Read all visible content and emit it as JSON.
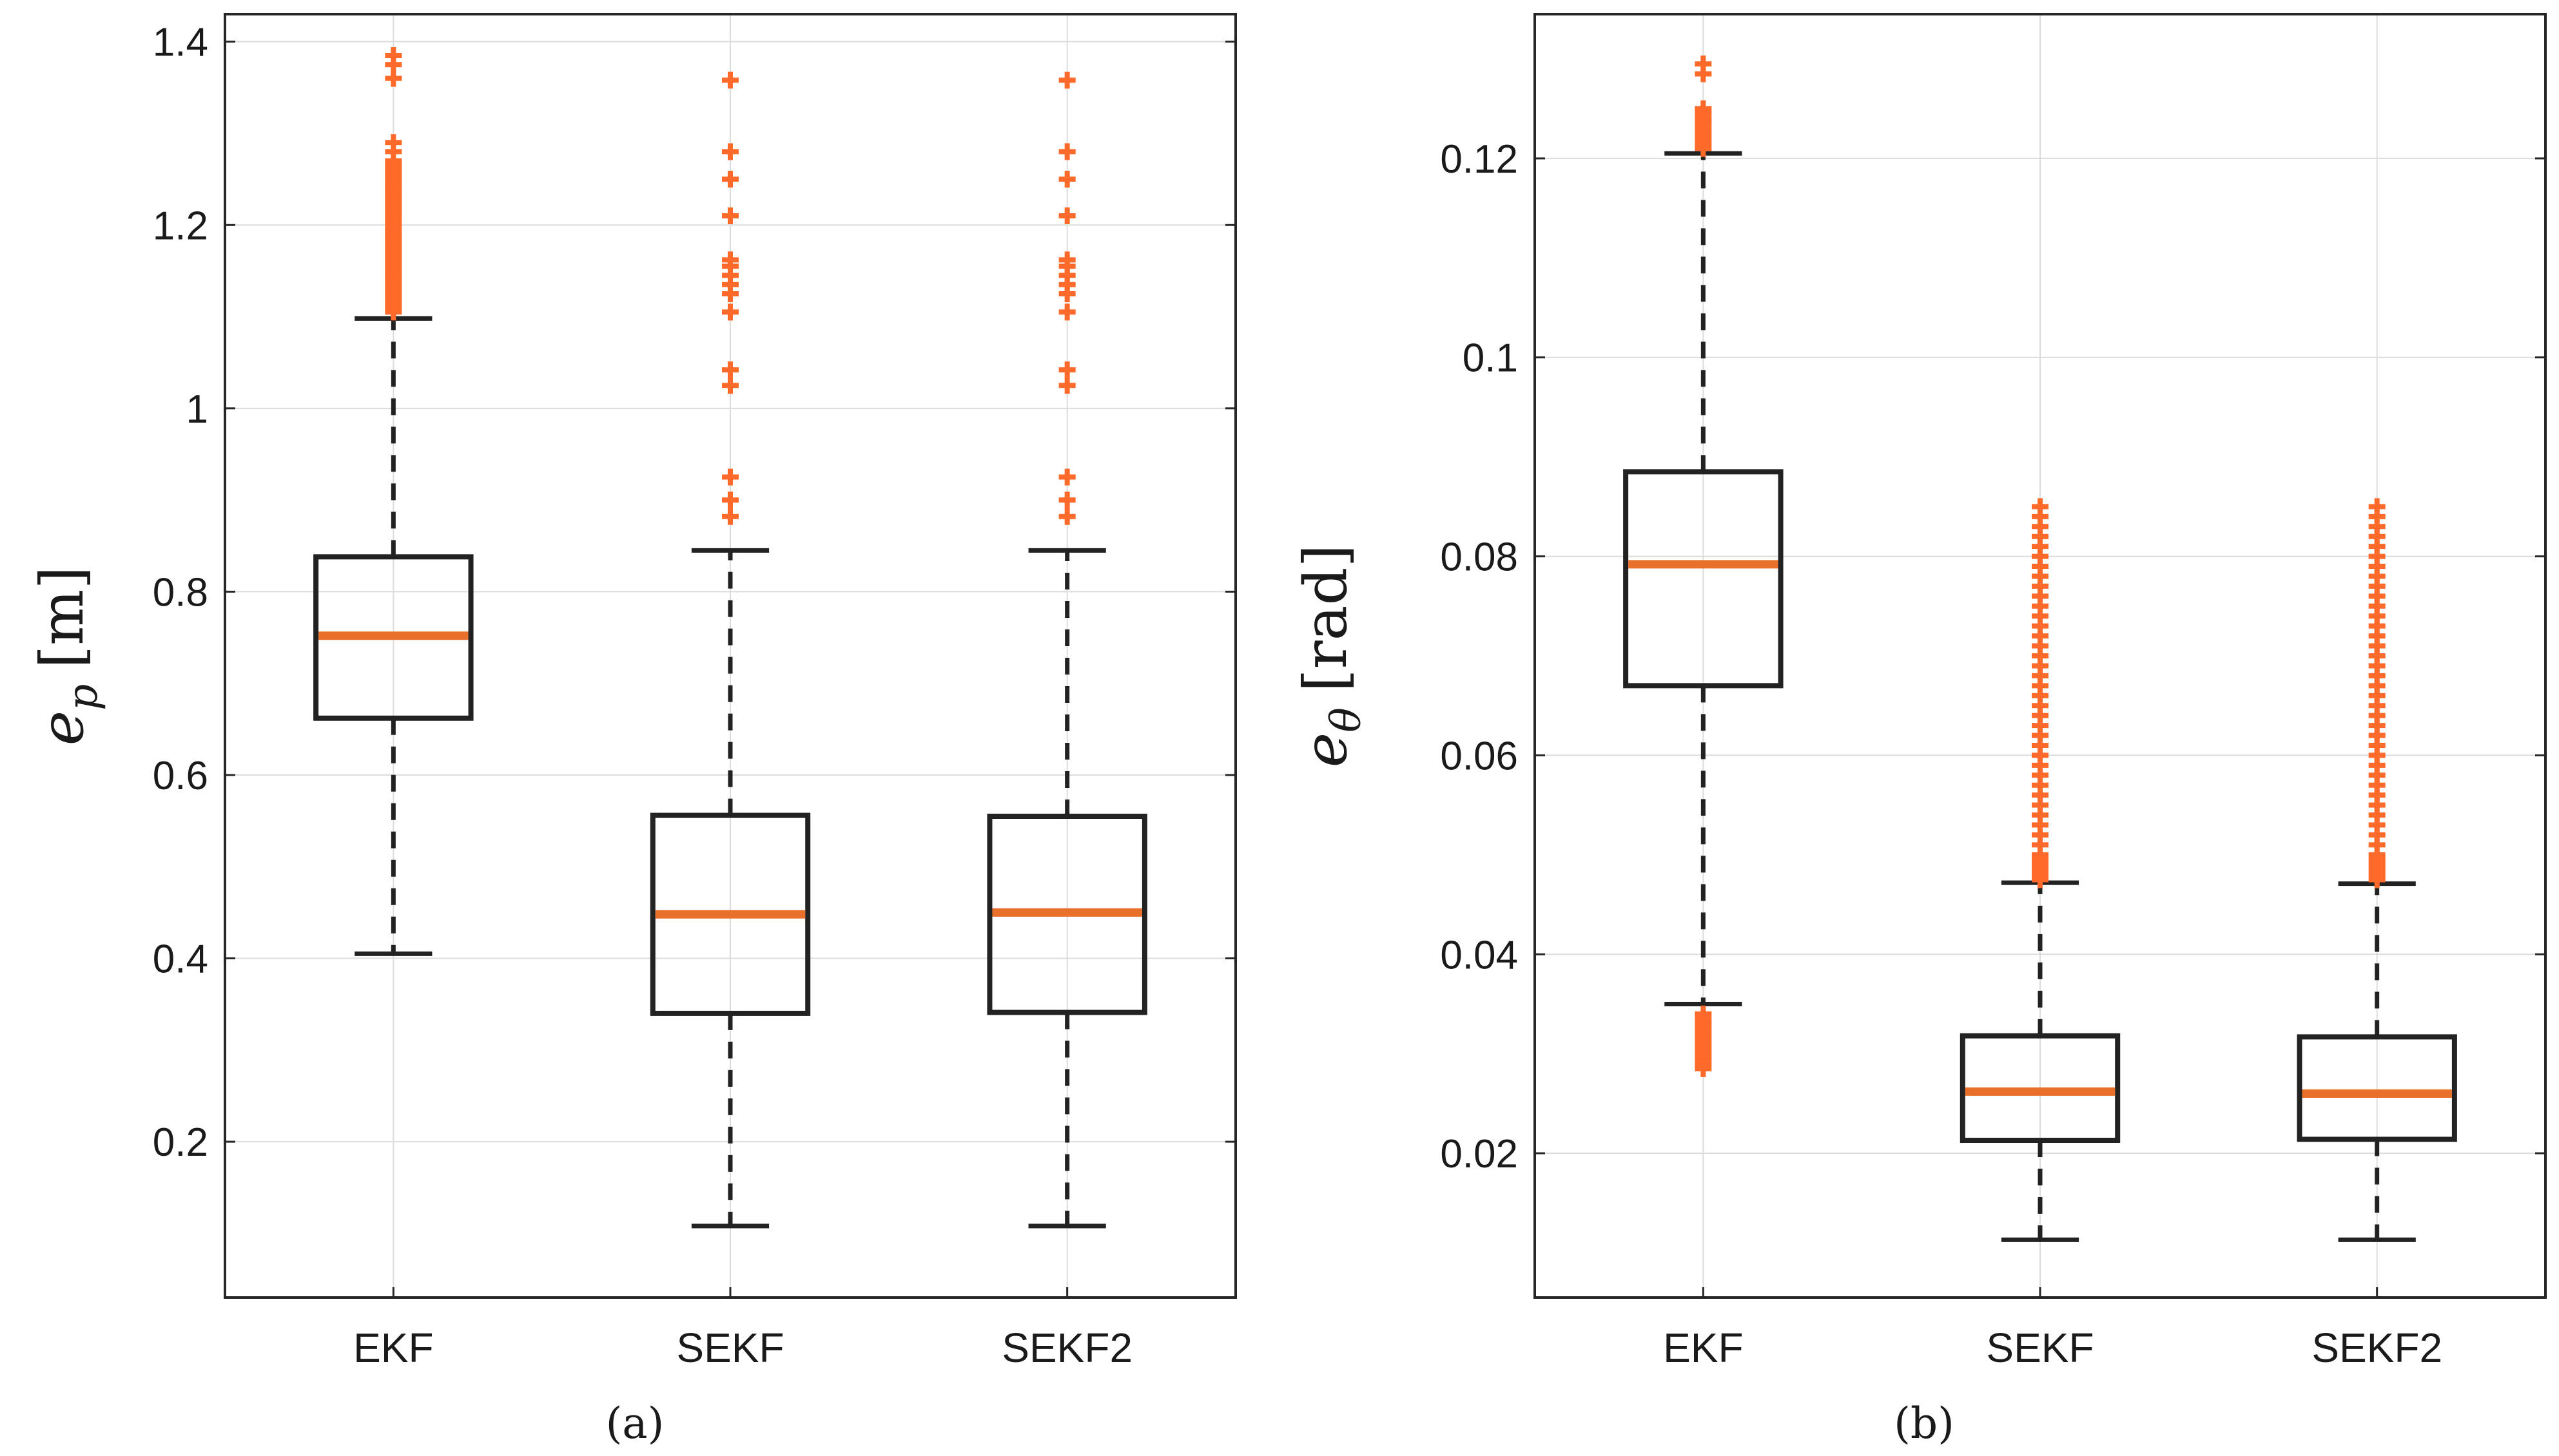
{
  "chart_data": [
    {
      "type": "box",
      "panel_label": "(a)",
      "ylabel_symbol": "e",
      "ylabel_subscript": "p",
      "ylabel_unit": "[m]",
      "categories": [
        "EKF",
        "SEKF",
        "SEKF2"
      ],
      "ylim": [
        0.03,
        1.43
      ],
      "yticks": [
        0.2,
        0.4,
        0.6,
        0.8,
        1,
        1.2,
        1.4
      ],
      "ytick_labels": [
        "0.2",
        "0.4",
        "0.6",
        "0.8",
        "1",
        "1.2",
        "1.4"
      ],
      "grid": true,
      "colors": {
        "box": "#222222",
        "median": "#e8702a",
        "outlier": "#ff6a2b",
        "grid": "#dcdcdc"
      },
      "boxes": [
        {
          "name": "EKF",
          "whisker_low": 0.405,
          "q1": 0.662,
          "median": 0.752,
          "q3": 0.838,
          "whisker_high": 1.098,
          "outliers": [
            1.105,
            1.11,
            1.115,
            1.12,
            1.125,
            1.13,
            1.135,
            1.14,
            1.145,
            1.15,
            1.155,
            1.16,
            1.165,
            1.17,
            1.175,
            1.18,
            1.185,
            1.19,
            1.195,
            1.2,
            1.205,
            1.21,
            1.215,
            1.22,
            1.225,
            1.23,
            1.235,
            1.24,
            1.245,
            1.25,
            1.255,
            1.26,
            1.265,
            1.27,
            1.28,
            1.29,
            1.36,
            1.375,
            1.385
          ]
        },
        {
          "name": "SEKF",
          "whisker_low": 0.108,
          "q1": 0.34,
          "median": 0.448,
          "q3": 0.556,
          "whisker_high": 0.845,
          "outliers": [
            0.882,
            0.9,
            0.925,
            1.025,
            1.042,
            1.105,
            1.125,
            1.135,
            1.145,
            1.155,
            1.162,
            1.21,
            1.25,
            1.28,
            1.358
          ]
        },
        {
          "name": "SEKF2",
          "whisker_low": 0.108,
          "q1": 0.341,
          "median": 0.45,
          "q3": 0.555,
          "whisker_high": 0.845,
          "outliers": [
            0.882,
            0.9,
            0.925,
            1.025,
            1.042,
            1.105,
            1.125,
            1.135,
            1.145,
            1.155,
            1.162,
            1.21,
            1.25,
            1.28,
            1.358
          ]
        }
      ]
    },
    {
      "type": "box",
      "panel_label": "(b)",
      "ylabel_symbol": "e",
      "ylabel_subscript": "θ",
      "ylabel_unit": "[rad]",
      "categories": [
        "EKF",
        "SEKF",
        "SEKF2"
      ],
      "ylim": [
        0.0055,
        0.1345
      ],
      "yticks": [
        0.02,
        0.04,
        0.06,
        0.08,
        0.1,
        0.12
      ],
      "ytick_labels": [
        "0.02",
        "0.04",
        "0.06",
        "0.08",
        "0.1",
        "0.12"
      ],
      "grid": true,
      "colors": {
        "box": "#222222",
        "median": "#e8702a",
        "outlier": "#ff6a2b",
        "grid": "#dcdcdc"
      },
      "boxes": [
        {
          "name": "EKF",
          "whisker_low": 0.035,
          "q1": 0.067,
          "median": 0.0792,
          "q3": 0.0885,
          "whisker_high": 0.1205,
          "outliers": [
            0.0285,
            0.029,
            0.0295,
            0.03,
            0.0305,
            0.031,
            0.0315,
            0.032,
            0.0325,
            0.033,
            0.0335,
            0.034,
            0.121,
            0.1215,
            0.122,
            0.1225,
            0.123,
            0.1235,
            0.124,
            0.1245,
            0.125,
            0.1285,
            0.1295
          ]
        },
        {
          "name": "SEKF",
          "whisker_low": 0.0113,
          "q1": 0.0213,
          "median": 0.0262,
          "q3": 0.0318,
          "whisker_high": 0.0472,
          "outliers": [
            0.0475,
            0.048,
            0.0485,
            0.049,
            0.0495,
            0.05,
            0.051,
            0.052,
            0.053,
            0.054,
            0.055,
            0.056,
            0.057,
            0.058,
            0.059,
            0.06,
            0.061,
            0.062,
            0.063,
            0.064,
            0.065,
            0.066,
            0.067,
            0.068,
            0.069,
            0.07,
            0.071,
            0.072,
            0.073,
            0.074,
            0.075,
            0.076,
            0.077,
            0.078,
            0.079,
            0.08,
            0.081,
            0.082,
            0.083,
            0.084,
            0.085
          ]
        },
        {
          "name": "SEKF2",
          "whisker_low": 0.0113,
          "q1": 0.0214,
          "median": 0.026,
          "q3": 0.0317,
          "whisker_high": 0.0471,
          "outliers": [
            0.0475,
            0.048,
            0.0485,
            0.049,
            0.0495,
            0.05,
            0.051,
            0.052,
            0.053,
            0.054,
            0.055,
            0.056,
            0.057,
            0.058,
            0.059,
            0.06,
            0.061,
            0.062,
            0.063,
            0.064,
            0.065,
            0.066,
            0.067,
            0.068,
            0.069,
            0.07,
            0.071,
            0.072,
            0.073,
            0.074,
            0.075,
            0.076,
            0.077,
            0.078,
            0.079,
            0.08,
            0.081,
            0.082,
            0.083,
            0.084,
            0.085
          ]
        }
      ]
    }
  ]
}
